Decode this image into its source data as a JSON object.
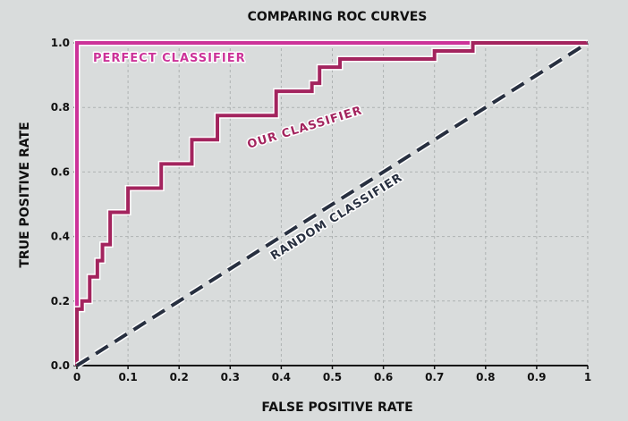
{
  "chart_data": {
    "type": "line",
    "title": "COMPARING ROC CURVES",
    "xlabel": "FALSE POSITIVE RATE",
    "ylabel": "TRUE POSITIVE RATE",
    "xlim": [
      0,
      1
    ],
    "ylim": [
      0,
      1
    ],
    "x_ticks": [
      "0",
      "0.1",
      "0.2",
      "0.3",
      "0.4",
      "0.5",
      "0.6",
      "0.7",
      "0.8",
      "0.9",
      "1"
    ],
    "y_ticks": [
      "0.0",
      "0.2",
      "0.4",
      "0.6",
      "0.8",
      "1.0"
    ],
    "grid": true,
    "series": [
      {
        "name": "PERFECT CLASSIFIER",
        "color": "#cc3399",
        "style": "solid",
        "x": [
          0,
          0,
          1
        ],
        "y": [
          0,
          1,
          1
        ]
      },
      {
        "name": "OUR CLASSIFIER",
        "color": "#a3245e",
        "style": "solid",
        "x": [
          0,
          0,
          0.01,
          0.01,
          0.025,
          0.025,
          0.04,
          0.04,
          0.05,
          0.05,
          0.065,
          0.065,
          0.1,
          0.1,
          0.165,
          0.165,
          0.225,
          0.225,
          0.275,
          0.275,
          0.39,
          0.39,
          0.46,
          0.46,
          0.475,
          0.475,
          0.515,
          0.515,
          0.7,
          0.7,
          0.775,
          0.775,
          1
        ],
        "y": [
          0,
          0.175,
          0.175,
          0.2,
          0.2,
          0.275,
          0.275,
          0.325,
          0.325,
          0.375,
          0.375,
          0.475,
          0.475,
          0.55,
          0.55,
          0.625,
          0.625,
          0.7,
          0.7,
          0.775,
          0.775,
          0.85,
          0.85,
          0.875,
          0.875,
          0.925,
          0.925,
          0.95,
          0.95,
          0.975,
          0.975,
          1,
          1
        ]
      },
      {
        "name": "RANDOM CLASSIFIER",
        "color": "#283040",
        "style": "dashed",
        "x": [
          0,
          1
        ],
        "y": [
          0,
          1
        ]
      }
    ]
  }
}
